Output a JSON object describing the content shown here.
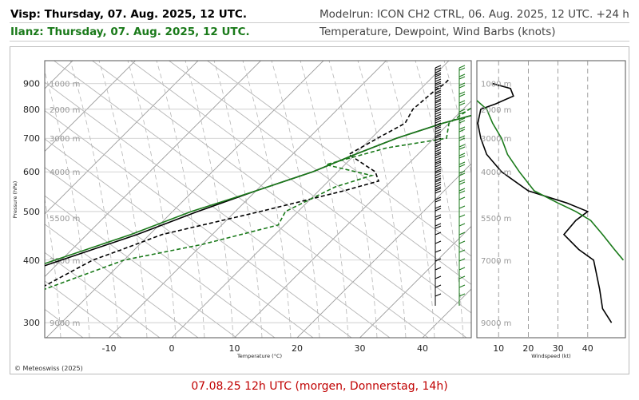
{
  "header": {
    "visp_label": "Visp: Thursday, 07. Aug. 2025, 12 UTC.",
    "ilanz_label": "Ilanz: Thursday, 07. Aug. 2025, 12 UTC.",
    "modelrun": "Modelrun: ICON CH2 CTRL, 06. Aug. 2025, 12 UTC. +24 h",
    "subtitle": "Temperature, Dewpoint, Wind Barbs (knots)"
  },
  "footer": {
    "copyright": "© Meteoswiss (2025)",
    "caption": "07.08.25 12h UTC (morgen, Donnerstag, 14h)"
  },
  "colors": {
    "visp": "#000000",
    "ilanz": "#1a7a1a",
    "grid": "#aaaaaa",
    "caption": "#c00000"
  },
  "chart_data": [
    {
      "type": "line",
      "subtype": "skew-T log-P diagram",
      "xlabel": "Temperature (°C)",
      "ylabel": "Pressure (hPa)",
      "x_ticks": [
        "-10",
        "0",
        "10",
        "20",
        "30",
        "40"
      ],
      "y_ticks": [
        "300",
        "400",
        "500",
        "600",
        "700",
        "800",
        "900"
      ],
      "height_labels": [
        "9000 m",
        "7000 m",
        "5500 m",
        "4000 m",
        "3000 m",
        "2000 m",
        "1000 m"
      ],
      "series": [
        {
          "name": "Visp: Thursday, 07. Aug. 2025, 12 UTC.",
          "variable": "Temperature",
          "style": "solid",
          "color": "#000000",
          "points": [
            [
              915,
              34
            ],
            [
              910,
              30
            ],
            [
              890,
              27
            ],
            [
              850,
              21
            ],
            [
              800,
              15
            ],
            [
              750,
              9
            ],
            [
              700,
              4
            ],
            [
              650,
              0
            ],
            [
              600,
              -4
            ],
            [
              550,
              -10
            ],
            [
              500,
              -16
            ],
            [
              450,
              -22
            ],
            [
              400,
              -30
            ],
            [
              350,
              -39
            ],
            [
              300,
              -49
            ]
          ]
        },
        {
          "name": "Visp: Thursday, 07. Aug. 2025, 12 UTC.",
          "variable": "Dewpoint",
          "style": "dashed",
          "color": "#000000",
          "points": [
            [
              915,
              3
            ],
            [
              900,
              3
            ],
            [
              870,
              2.5
            ],
            [
              800,
              2
            ],
            [
              750,
              3
            ],
            [
              700,
              1
            ],
            [
              650,
              -1
            ],
            [
              600,
              6
            ],
            [
              575,
              8
            ],
            [
              550,
              4
            ],
            [
              500,
              -6
            ],
            [
              450,
              -18
            ],
            [
              420,
              -22
            ],
            [
              400,
              -25
            ],
            [
              350,
              -29
            ],
            [
              300,
              -34
            ]
          ]
        },
        {
          "name": "Ilanz: Thursday, 07. Aug. 2025, 12 UTC.",
          "variable": "Temperature",
          "style": "solid",
          "color": "#1a7a1a",
          "points": [
            [
              910,
              28
            ],
            [
              880,
              25
            ],
            [
              850,
              21
            ],
            [
              800,
              15
            ],
            [
              750,
              9
            ],
            [
              700,
              4
            ],
            [
              650,
              0
            ],
            [
              600,
              -4
            ],
            [
              550,
              -10
            ],
            [
              500,
              -17
            ],
            [
              450,
              -23
            ],
            [
              400,
              -31
            ],
            [
              350,
              -40
            ],
            [
              300,
              -50
            ]
          ]
        },
        {
          "name": "Ilanz: Thursday, 07. Aug. 2025, 12 UTC.",
          "variable": "Dewpoint",
          "style": "dashed",
          "color": "#1a7a1a",
          "points": [
            [
              900,
              13
            ],
            [
              850,
              13
            ],
            [
              800,
              11
            ],
            [
              750,
              10
            ],
            [
              700,
              12
            ],
            [
              670,
              4
            ],
            [
              620,
              -3
            ],
            [
              590,
              6
            ],
            [
              560,
              2
            ],
            [
              500,
              -2
            ],
            [
              470,
              -1
            ],
            [
              430,
              -10
            ],
            [
              400,
              -20
            ],
            [
              350,
              -28
            ],
            [
              300,
              -36
            ]
          ]
        }
      ]
    },
    {
      "type": "line",
      "subtype": "wind speed profile",
      "xlabel": "Windspeed (kt)",
      "x_ticks": [
        "10",
        "20",
        "30",
        "40"
      ],
      "xlim": [
        0,
        50
      ],
      "y_ticks": [
        "9000 m",
        "7000 m",
        "5500 m",
        "4000 m",
        "3000 m",
        "2000 m",
        "1000 m"
      ],
      "series": [
        {
          "name": "Visp: Thursday, 07. Aug. 2025, 12 UTC.",
          "color": "#000000",
          "points": [
            [
              900,
              8
            ],
            [
              880,
              14
            ],
            [
              850,
              15
            ],
            [
              820,
              9
            ],
            [
              800,
              4
            ],
            [
              750,
              3
            ],
            [
              700,
              4
            ],
            [
              650,
              6
            ],
            [
              600,
              11
            ],
            [
              550,
              20
            ],
            [
              520,
              33
            ],
            [
              500,
              40
            ],
            [
              480,
              36
            ],
            [
              450,
              32
            ],
            [
              420,
              37
            ],
            [
              400,
              42
            ],
            [
              350,
              44
            ],
            [
              320,
              45
            ],
            [
              300,
              48
            ]
          ]
        },
        {
          "name": "Ilanz: Thursday, 07. Aug. 2025, 12 UTC.",
          "color": "#1a7a1a",
          "points": [
            [
              900,
              2
            ],
            [
              850,
              1
            ],
            [
              800,
              6
            ],
            [
              750,
              8
            ],
            [
              700,
              11
            ],
            [
              650,
              13
            ],
            [
              600,
              17
            ],
            [
              550,
              22
            ],
            [
              520,
              30
            ],
            [
              500,
              36
            ],
            [
              480,
              41
            ],
            [
              450,
              45
            ],
            [
              420,
              49
            ],
            [
              400,
              52
            ]
          ]
        }
      ]
    }
  ]
}
